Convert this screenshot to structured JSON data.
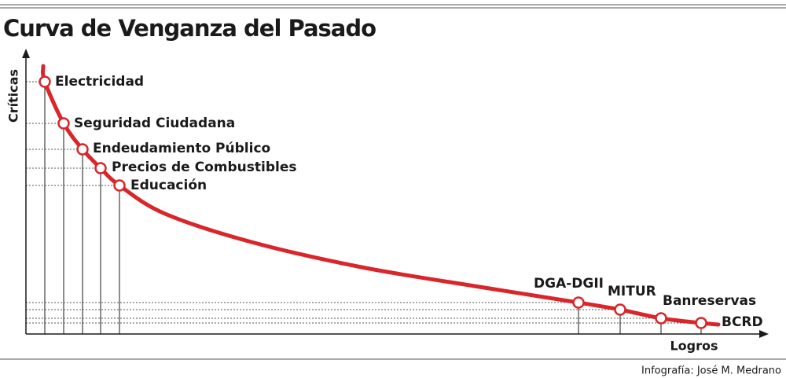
{
  "title": "Curva de Venganza del Pasado",
  "y_axis_label": "Críticas",
  "x_axis_label": "Logros",
  "credit": "Infografía: José M. Medrano",
  "nodes": [
    {
      "label": "Electricidad"
    },
    {
      "label": "Seguridad Ciudadana"
    },
    {
      "label": "Endeudamiento Público"
    },
    {
      "label": "Precios de Combustibles"
    },
    {
      "label": "Educación"
    },
    {
      "label": "DGA-DGII"
    },
    {
      "label": "MITUR"
    },
    {
      "label": "Banreservas"
    },
    {
      "label": "BCRD"
    }
  ]
}
